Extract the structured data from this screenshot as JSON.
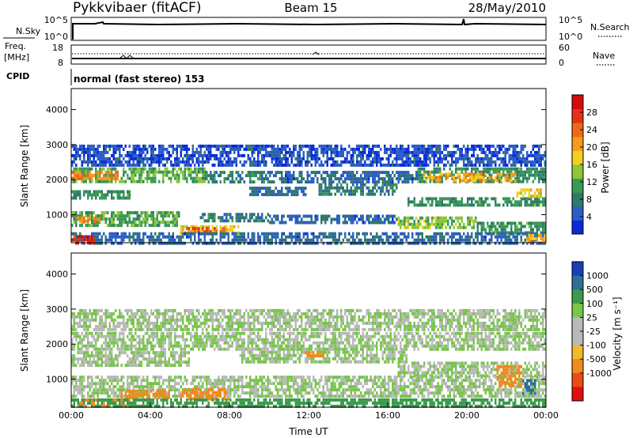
{
  "header": {
    "title": "Pykkvibaer (fitACF)",
    "beam": "Beam 15",
    "date": "28/May/2010"
  },
  "panel_noise": {
    "left_label": "N.Sky",
    "right_label": "N.Search",
    "left_ticks": [
      "10^5",
      "10^0"
    ],
    "right_ticks": [
      "10^5",
      "10^0"
    ]
  },
  "panel_freq": {
    "left_label_1": "Freq.",
    "left_label_2": "[MHz]",
    "right_label": "Nave",
    "left_ticks": [
      "18",
      "8"
    ],
    "right_ticks": [
      "60",
      "0"
    ]
  },
  "panel_cpid": {
    "label": "CPID",
    "text": "normal (fast stereo) 153"
  },
  "colors": {
    "power_scale": [
      "#0a2bd8",
      "#2b5dc6",
      "#2f7a6a",
      "#3a9a55",
      "#8cc63a",
      "#f2d020",
      "#f59c1a",
      "#ee6a18",
      "#e43314",
      "#d40b0b"
    ],
    "velocity_scale": [
      "#1a3fb8",
      "#2f6f96",
      "#3b9a4c",
      "#78c64a",
      "#b9b9b9",
      "#b9b9b9",
      "#f2b92a",
      "#f08a1c",
      "#ea4c16",
      "#e01010"
    ]
  },
  "chart_data": [
    {
      "type": "heatmap",
      "name": "power",
      "ylabel": "Slant Range [km]",
      "yticks": [
        "1000",
        "2000",
        "3000",
        "4000"
      ],
      "ylim": [
        200,
        4600
      ],
      "xlim": [
        "00:00",
        "24:00"
      ],
      "colorbar_label": "Power [dB]",
      "colorbar_ticks": [
        "4",
        "8",
        "12",
        "16",
        "20",
        "24",
        "28"
      ],
      "colorbar_range": [
        0,
        32
      ],
      "bands": [
        {
          "t": [
            0,
            6.8
          ],
          "r": [
            1900,
            2350
          ],
          "v": 12
        },
        {
          "t": [
            6.8,
            10.5
          ],
          "r": [
            1950,
            2250
          ],
          "v": 8
        },
        {
          "t": [
            10.5,
            17.5
          ],
          "r": [
            1950,
            2250
          ],
          "v": 6
        },
        {
          "t": [
            17.5,
            24
          ],
          "r": [
            1900,
            2350
          ],
          "v": 10
        },
        {
          "t": [
            0,
            2.5
          ],
          "r": [
            2050,
            2250
          ],
          "v": 22
        },
        {
          "t": [
            17.8,
            22.5
          ],
          "r": [
            2000,
            2200
          ],
          "v": 20
        },
        {
          "t": [
            0,
            24
          ],
          "r": [
            2400,
            3000
          ],
          "v": 4
        },
        {
          "t": [
            0,
            3
          ],
          "r": [
            1450,
            1700
          ],
          "v": 10
        },
        {
          "t": [
            9,
            12
          ],
          "r": [
            1550,
            1800
          ],
          "v": 6
        },
        {
          "t": [
            12.5,
            16.5
          ],
          "r": [
            1550,
            1900
          ],
          "v": 8
        },
        {
          "t": [
            17,
            24
          ],
          "r": [
            1250,
            1500
          ],
          "v": 10
        },
        {
          "t": [
            22.5,
            23.8
          ],
          "r": [
            1550,
            1750
          ],
          "v": 18
        },
        {
          "t": [
            0,
            5.5
          ],
          "r": [
            700,
            1100
          ],
          "v": 12
        },
        {
          "t": [
            0.2,
            1.5
          ],
          "r": [
            800,
            950
          ],
          "v": 22
        },
        {
          "t": [
            6.5,
            10
          ],
          "r": [
            850,
            1050
          ],
          "v": 8
        },
        {
          "t": [
            10,
            16.5
          ],
          "r": [
            800,
            1000
          ],
          "v": 6
        },
        {
          "t": [
            16.5,
            20.5
          ],
          "r": [
            600,
            950
          ],
          "v": 14
        },
        {
          "t": [
            20.5,
            24
          ],
          "r": [
            500,
            800
          ],
          "v": 10
        },
        {
          "t": [
            5.5,
            8.5
          ],
          "r": [
            450,
            700
          ],
          "v": 18
        },
        {
          "t": [
            5.8,
            7.8
          ],
          "r": [
            500,
            650
          ],
          "v": 24
        },
        {
          "t": [
            0,
            24
          ],
          "r": [
            200,
            500
          ],
          "v": 6
        },
        {
          "t": [
            0,
            1.2
          ],
          "r": [
            200,
            420
          ],
          "v": 28
        },
        {
          "t": [
            23,
            24
          ],
          "r": [
            200,
            450
          ],
          "v": 20
        }
      ]
    },
    {
      "type": "heatmap",
      "name": "velocity",
      "ylabel": "Slant Range [km]",
      "yticks": [
        "1000",
        "2000",
        "3000",
        "4000"
      ],
      "ylim": [
        200,
        4600
      ],
      "xlabel": "Time UT",
      "xticks": [
        "00:00",
        "04:00",
        "08:00",
        "12:00",
        "16:00",
        "20:00",
        "00:00"
      ],
      "xlim": [
        "00:00",
        "24:00"
      ],
      "colorbar_label": "Velocity [m s⁻¹]",
      "colorbar_ticks": [
        "1000",
        "500",
        "100",
        "25",
        "-25",
        "-100",
        "-500",
        "-1000"
      ],
      "bands": [
        {
          "t": [
            0,
            24
          ],
          "r": [
            1850,
            2350
          ],
          "v": 0
        },
        {
          "t": [
            0,
            24
          ],
          "r": [
            2400,
            3000
          ],
          "v": 0
        },
        {
          "t": [
            0,
            6
          ],
          "r": [
            1400,
            1800
          ],
          "v": 0
        },
        {
          "t": [
            8.5,
            17
          ],
          "r": [
            1500,
            1900
          ],
          "v": 0
        },
        {
          "t": [
            16.5,
            24
          ],
          "r": [
            1100,
            1500
          ],
          "v": 0
        },
        {
          "t": [
            0,
            24
          ],
          "r": [
            550,
            1100
          ],
          "v": 0
        },
        {
          "t": [
            11.8,
            12.8
          ],
          "r": [
            1650,
            1800
          ],
          "v": -150
        },
        {
          "t": [
            2.5,
            5
          ],
          "r": [
            450,
            700
          ],
          "v": -150
        },
        {
          "t": [
            5.5,
            8
          ],
          "r": [
            450,
            750
          ],
          "v": -200
        },
        {
          "t": [
            0,
            3
          ],
          "r": [
            200,
            450
          ],
          "v": -150
        },
        {
          "t": [
            21.5,
            22.8
          ],
          "r": [
            800,
            1400
          ],
          "v": -400
        },
        {
          "t": [
            22.8,
            23.5
          ],
          "r": [
            600,
            1000
          ],
          "v": 300
        },
        {
          "t": [
            0,
            24
          ],
          "r": [
            200,
            450
          ],
          "v": 50
        }
      ]
    }
  ]
}
